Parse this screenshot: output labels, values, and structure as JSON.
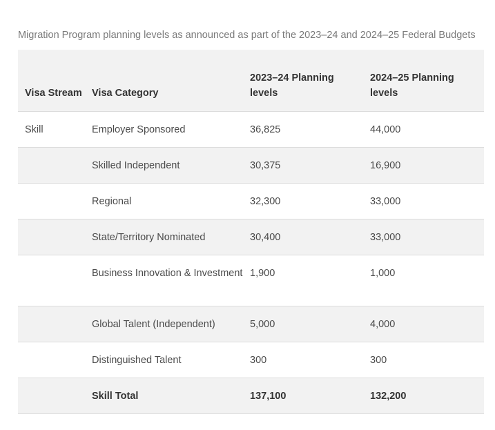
{
  "caption": "Migration Program planning levels as announced as part of the 2023–24 and 2024–25 Federal Budgets",
  "table": {
    "headers": {
      "stream": "Visa Stream",
      "category": "Visa Category",
      "levels_2023": "2023–24 Planning levels",
      "levels_2024": "2024–25 Planning levels"
    },
    "rows": [
      {
        "stream": "Skill",
        "category": "Employer Sponsored",
        "levels_2023": "36,825",
        "levels_2024": "44,000"
      },
      {
        "stream": "",
        "category": "Skilled Independent",
        "levels_2023": "30,375",
        "levels_2024": "16,900"
      },
      {
        "stream": "",
        "category": "Regional",
        "levels_2023": "32,300",
        "levels_2024": "33,000"
      },
      {
        "stream": "",
        "category": "State/Territory Nominated",
        "levels_2023": "30,400",
        "levels_2024": "33,000"
      },
      {
        "stream": "",
        "category": "Business Innovation & Investment",
        "levels_2023": "1,900",
        "levels_2024": "1,000"
      },
      {
        "stream": "",
        "category": "Global Talent (Independent)",
        "levels_2023": "5,000",
        "levels_2024": "4,000"
      },
      {
        "stream": "",
        "category": "Distinguished Talent",
        "levels_2023": "300",
        "levels_2024": "300"
      }
    ],
    "total": {
      "stream": "",
      "category": "Skill Total",
      "levels_2023": "137,100",
      "levels_2024": "132,200"
    }
  }
}
